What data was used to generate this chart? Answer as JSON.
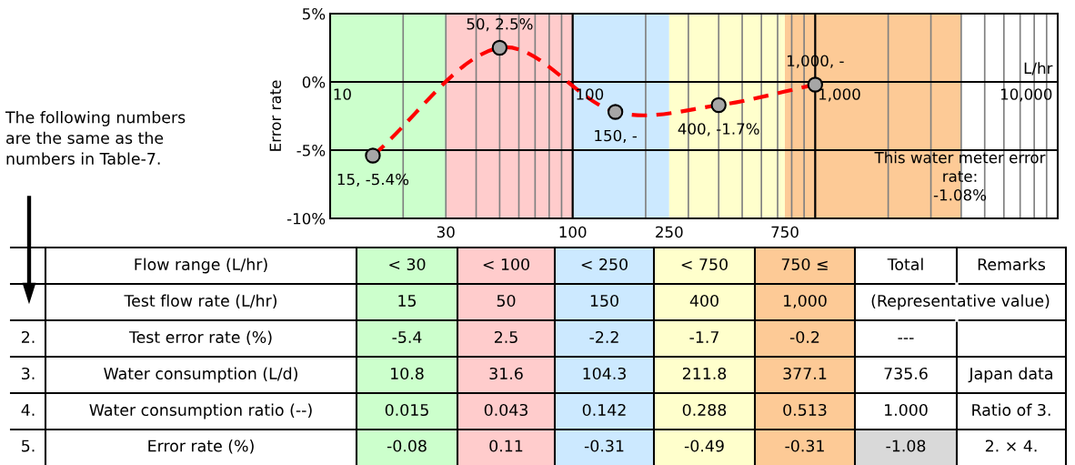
{
  "chart_data": {
    "type": "line",
    "x": [
      15,
      50,
      150,
      400,
      1000
    ],
    "series": [
      {
        "color": "#ff0000",
        "values": [
          -5.4,
          2.5,
          -2.2,
          -1.7,
          -0.2
        ],
        "value_labels": [
          "15, -5.4%",
          "50, 2.5%",
          null,
          "400, -1.7%",
          null
        ]
      }
    ],
    "log": "x",
    "xlim": [
      10,
      10000
    ],
    "xticks": [
      30,
      100,
      250,
      750
    ],
    "ylim": [
      -10,
      5
    ],
    "yticks": [
      {
        "value": 5,
        "label": "5%"
      },
      {
        "value": 0,
        "label": "0%"
      },
      {
        "value": -5,
        "label": "-5%"
      },
      {
        "value": -10,
        "label": "-10%"
      }
    ],
    "ylabel": "Error rate",
    "xlabel": "L/hr",
    "grid": true,
    "marker": "circle",
    "line_style": "dashed",
    "legend": false,
    "bands": [
      {
        "axis": "x",
        "from": 10,
        "to": 30,
        "color": "#ccffcc"
      },
      {
        "axis": "x",
        "from": 30,
        "to": 100,
        "color": "#ffcccc"
      },
      {
        "axis": "x",
        "from": 100,
        "to": 250,
        "color": "#cce9ff"
      },
      {
        "axis": "x",
        "from": 250,
        "to": 750,
        "color": "#ffffcc"
      },
      {
        "axis": "x",
        "from": 750,
        "to": 4000,
        "color": "#fdca96"
      }
    ],
    "annotations": [
      "10",
      "100",
      "1,000",
      "10,000",
      {
        "text": "150, -",
        "x": 150,
        "y": -2.2
      },
      {
        "text": "1,000, -",
        "x": 1000,
        "y": -0.2
      },
      "This water meter error\nrate:\n-1.08%",
      "The following numbers\nare the same as the\nnumbers in Table-7.",
      "Flow range (L/hr)",
      "< 30",
      "< 100",
      "< 250",
      "< 750",
      "750 ≤",
      "Total",
      "Remarks",
      "Test flow rate (L/hr)",
      "15",
      "50",
      "150",
      "400",
      "1,000",
      "(Representative value)",
      "2.",
      "Test error rate (%)",
      "-5.4",
      "2.5",
      "-2.2",
      "-1.7",
      "-0.2",
      "---",
      "3.",
      "Water consumption (L/d)",
      "10.8",
      "31.6",
      "104.3",
      "211.8",
      "377.1",
      "735.6",
      "Japan data",
      "4.",
      "Water consumption ratio (--)",
      "0.015",
      "0.043",
      "0.142",
      "0.288",
      "0.513",
      "1.000",
      "Ratio of 3.",
      "5.",
      "Error rate (%)",
      "-0.08",
      "0.11",
      "-0.31",
      "-0.49",
      "-0.31",
      "-1.08",
      "2. × 4."
    ]
  }
}
